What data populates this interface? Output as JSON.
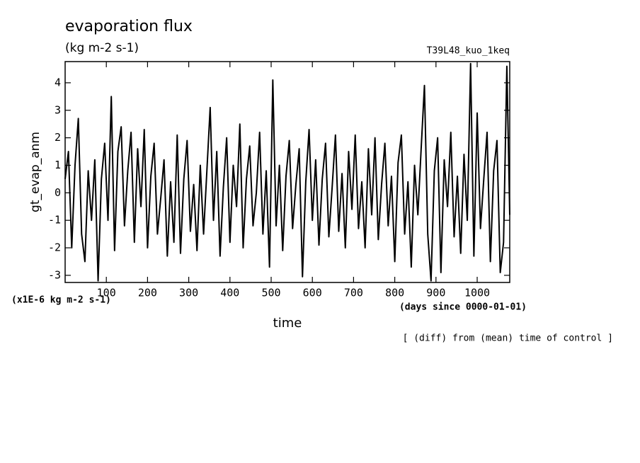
{
  "chart_data": {
    "type": "line",
    "title": "evaporation flux",
    "subtitle": "(kg m-2 s-1)",
    "run_label": "T39L48_kuo_1keq",
    "y_label": "gt_evap_anm",
    "x_label": "time",
    "y_unit": "(x1E-6 kg m-2 s-1)",
    "x_unit": "(days since 0000-01-01)",
    "note": "[ (diff) from (mean) time of control ]",
    "color": "#000000",
    "x": [
      0,
      8,
      16,
      24,
      32,
      40,
      48,
      56,
      64,
      72,
      80,
      88,
      96,
      104,
      112,
      120,
      128,
      136,
      144,
      152,
      160,
      168,
      176,
      184,
      192,
      200,
      208,
      216,
      224,
      232,
      240,
      248,
      256,
      264,
      272,
      280,
      288,
      296,
      304,
      312,
      320,
      328,
      336,
      344,
      352,
      360,
      368,
      376,
      384,
      392,
      400,
      408,
      416,
      424,
      432,
      440,
      448,
      456,
      464,
      472,
      480,
      488,
      496,
      504,
      512,
      520,
      528,
      536,
      544,
      552,
      560,
      568,
      576,
      584,
      592,
      600,
      608,
      616,
      624,
      632,
      640,
      648,
      656,
      664,
      672,
      680,
      688,
      696,
      704,
      712,
      720,
      728,
      736,
      744,
      752,
      760,
      768,
      776,
      784,
      792,
      800,
      808,
      816,
      824,
      832,
      840,
      848,
      856,
      864,
      872,
      880,
      888,
      896,
      904,
      912,
      920,
      928,
      936,
      944,
      952,
      960,
      968,
      976,
      984,
      992,
      1000,
      1008,
      1016,
      1024,
      1032,
      1040,
      1048,
      1056,
      1064,
      1072,
      1079
    ],
    "values": [
      0.5,
      1.5,
      -2.0,
      1.0,
      2.7,
      -1.5,
      -2.5,
      0.8,
      -1.0,
      1.2,
      -3.2,
      0.5,
      1.8,
      -1.0,
      3.5,
      -2.1,
      1.5,
      2.4,
      -1.2,
      0.8,
      2.2,
      -1.8,
      1.6,
      -0.5,
      2.3,
      -2.0,
      0.6,
      1.8,
      -1.5,
      -0.2,
      1.2,
      -2.3,
      0.4,
      -1.8,
      2.1,
      -2.2,
      0.5,
      1.9,
      -1.4,
      0.3,
      -2.1,
      1.0,
      -1.5,
      0.8,
      3.1,
      -1.0,
      1.5,
      -2.3,
      0.2,
      2.0,
      -1.8,
      1.0,
      -0.5,
      2.5,
      -2.0,
      0.5,
      1.7,
      -1.2,
      0.0,
      2.2,
      -1.5,
      0.8,
      -2.7,
      4.1,
      -1.2,
      1.0,
      -2.1,
      0.6,
      1.9,
      -1.3,
      0.3,
      1.6,
      -3.05,
      0.4,
      2.3,
      -1.0,
      1.2,
      -1.9,
      0.5,
      1.8,
      -1.6,
      0.2,
      2.1,
      -1.4,
      0.7,
      -2.0,
      1.5,
      -0.6,
      2.1,
      -1.3,
      0.4,
      -2.0,
      1.6,
      -0.8,
      2.0,
      -1.7,
      0.3,
      1.8,
      -1.2,
      0.6,
      -2.5,
      1.1,
      2.1,
      -1.5,
      0.4,
      -2.7,
      1.0,
      -0.8,
      1.6,
      3.9,
      -1.5,
      -3.2,
      0.8,
      2.0,
      -2.9,
      1.2,
      -0.5,
      2.2,
      -1.6,
      0.6,
      -2.2,
      1.4,
      -1.0,
      4.7,
      -2.3,
      2.9,
      -1.3,
      0.5,
      2.2,
      -2.5,
      0.8,
      1.9,
      -2.9,
      -1.8,
      4.6,
      -0.8
    ],
    "xlim": [
      0,
      1079
    ],
    "ylim": [
      -3.26,
      4.77
    ],
    "xticks": [
      100,
      200,
      300,
      400,
      500,
      600,
      700,
      800,
      900,
      1000
    ],
    "yticks": [
      -3,
      -2,
      -1,
      0,
      1,
      2,
      3,
      4
    ]
  }
}
